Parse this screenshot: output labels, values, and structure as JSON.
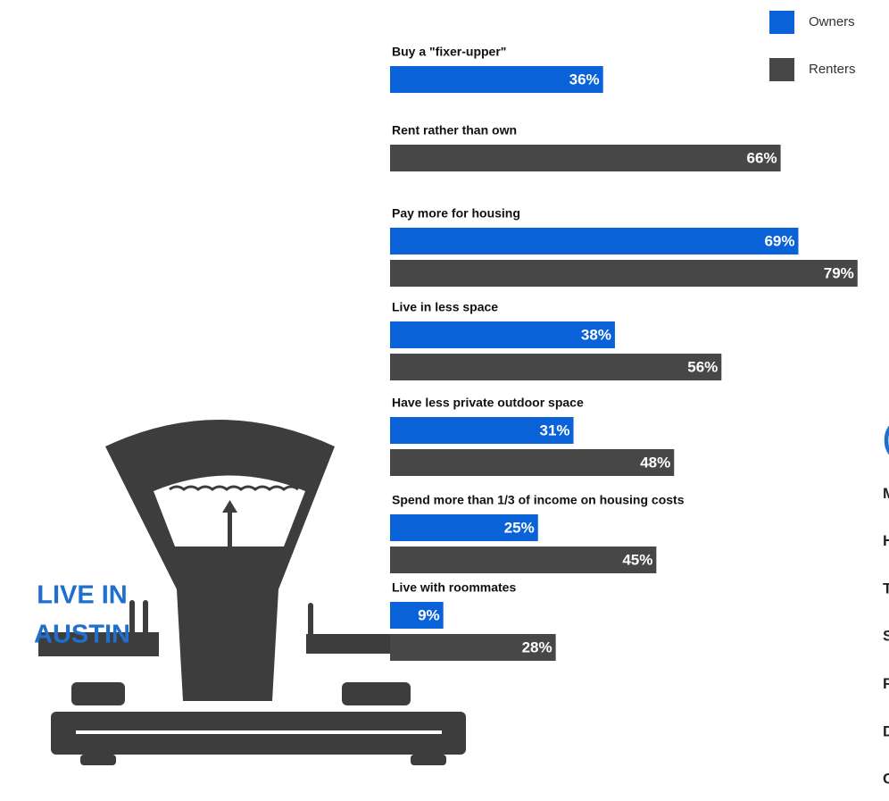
{
  "chart_data": {
    "type": "bar",
    "orientation": "horizontal",
    "categories": [
      "Buy a \"fixer-upper\"",
      "Rent rather than own",
      "Pay more for housing",
      "Live in less space",
      "Have less private outdoor space",
      "Spend more than 1/3 of income on housing costs",
      "Live with roommates"
    ],
    "series": [
      {
        "name": "Owners",
        "color": "#0a62d8",
        "values": [
          36,
          null,
          69,
          38,
          31,
          25,
          9
        ],
        "value_labels": [
          "36%",
          null,
          "69%",
          "38%",
          "31%",
          "25%",
          "9%"
        ]
      },
      {
        "name": "Renters",
        "color": "#474747",
        "values": [
          null,
          66,
          79,
          56,
          48,
          45,
          28
        ],
        "value_labels": [
          null,
          "66%",
          "79%",
          "56%",
          "48%",
          "45%",
          "28%"
        ]
      }
    ],
    "legend": "top-right",
    "annotation_lines": [
      "LIVE IN",
      "AUSTIN"
    ],
    "side_letters": [
      "(",
      "M",
      "H",
      "T",
      "S",
      "F",
      "D",
      "C"
    ]
  }
}
